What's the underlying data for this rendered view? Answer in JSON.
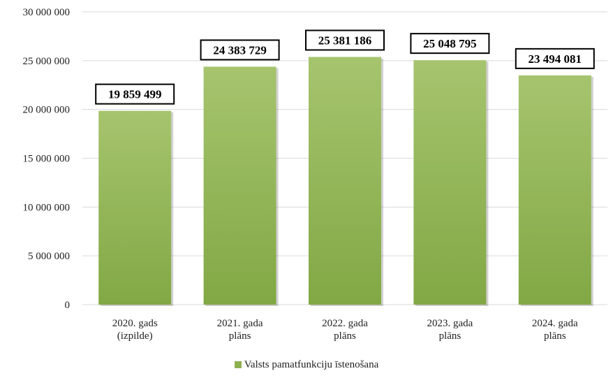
{
  "chart_data": {
    "type": "bar",
    "categories": [
      [
        "2020. gads",
        "(izpilde)"
      ],
      [
        "2021. gada",
        "plāns"
      ],
      [
        "2022. gada",
        "plāns"
      ],
      [
        "2023. gada",
        "plāns"
      ],
      [
        "2024. gada",
        "plāns"
      ]
    ],
    "series": [
      {
        "name": "Valsts pamatfunkciju īstenošana",
        "values": [
          19859499,
          24383729,
          25381186,
          25048795,
          23494081
        ],
        "labels": [
          "19 859 499",
          "24 383 729",
          "25 381 186",
          "25 048 795",
          "23 494 081"
        ],
        "color": "#8db04e"
      }
    ],
    "ylim": [
      0,
      30000000
    ],
    "yticks": [
      0,
      5000000,
      10000000,
      15000000,
      20000000,
      25000000,
      30000000
    ],
    "ytick_labels": [
      "0",
      "5 000 000",
      "10 000 000",
      "15 000 000",
      "20 000 000",
      "25 000 000",
      "30 000 000"
    ],
    "grid": true,
    "legend_position": "bottom-center",
    "gridline_color": "#d9d9d9",
    "bar_color_top": "#a6c46e",
    "bar_color_bottom": "#82a845"
  }
}
